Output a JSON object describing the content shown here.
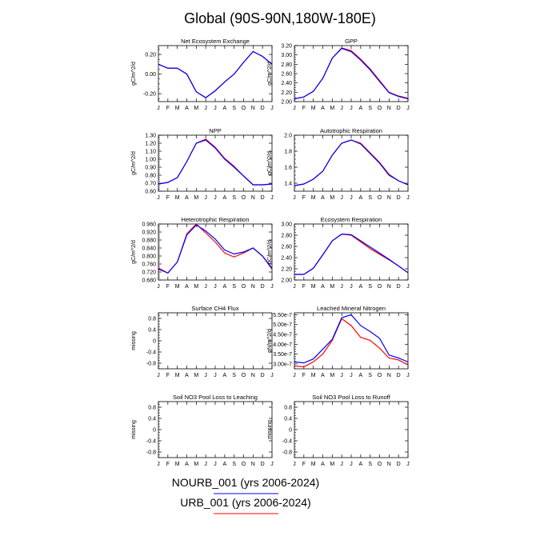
{
  "figure": {
    "title": "Global (90S-90N,180W-180E)"
  },
  "colors": {
    "nourb": "#0000ff",
    "urb": "#ff0000"
  },
  "legend": {
    "entries": [
      {
        "label": "NOURB_001 (yrs 2006-2024)",
        "color": "#0000ff"
      },
      {
        "label": "URB_001 (yrs 2006-2024)",
        "color": "#ff0000"
      }
    ]
  },
  "chart_data": [
    {
      "type": "line",
      "title": "Net Ecosystem Exchange",
      "ylabel": "gC/m^2/d",
      "categories": [
        "J",
        "F",
        "M",
        "A",
        "M",
        "J",
        "J",
        "A",
        "S",
        "O",
        "N",
        "D",
        "J"
      ],
      "ylim": [
        -0.28,
        0.29
      ],
      "yticks": [
        -0.2,
        0.0,
        0.2
      ],
      "yticklabels": [
        "-0.20",
        "0.00",
        "0.20"
      ],
      "series": [
        {
          "name": "NOURB_001 (yrs 2006-2024)",
          "color": "#0000ff",
          "values": [
            0.1,
            0.06,
            0.06,
            0.0,
            -0.18,
            -0.24,
            -0.17,
            -0.08,
            0.0,
            0.12,
            0.23,
            0.18,
            0.1
          ]
        },
        {
          "name": "URB_001 (yrs 2006-2024)",
          "color": "#ff0000",
          "values": [
            0.1,
            0.06,
            0.06,
            0.0,
            -0.18,
            -0.24,
            -0.17,
            -0.08,
            0.0,
            0.12,
            0.23,
            0.18,
            0.1
          ]
        }
      ]
    },
    {
      "type": "line",
      "title": "GPP",
      "ylabel": "gC/m^2/d",
      "categories": [
        "J",
        "F",
        "M",
        "A",
        "M",
        "J",
        "J",
        "A",
        "S",
        "O",
        "N",
        "D",
        "J"
      ],
      "ylim": [
        2.0,
        3.2
      ],
      "yticks": [
        2.0,
        2.2,
        2.4,
        2.6,
        2.8,
        3.0,
        3.2
      ],
      "yticklabels": [
        "2.00",
        "2.20",
        "2.40",
        "2.60",
        "2.80",
        "3.00",
        "3.20"
      ],
      "series": [
        {
          "name": "NOURB_001 (yrs 2006-2024)",
          "color": "#0000ff",
          "values": [
            2.06,
            2.1,
            2.22,
            2.5,
            2.93,
            3.14,
            3.07,
            2.89,
            2.68,
            2.43,
            2.19,
            2.11,
            2.06
          ]
        },
        {
          "name": "URB_001 (yrs 2006-2024)",
          "color": "#ff0000",
          "values": [
            2.06,
            2.1,
            2.22,
            2.5,
            2.93,
            3.15,
            3.09,
            2.91,
            2.7,
            2.45,
            2.2,
            2.12,
            2.07
          ]
        }
      ]
    },
    {
      "type": "line",
      "title": "NPP",
      "ylabel": "gC/m^2/d",
      "categories": [
        "J",
        "F",
        "M",
        "A",
        "M",
        "J",
        "J",
        "A",
        "S",
        "O",
        "N",
        "D",
        "J"
      ],
      "ylim": [
        0.6,
        1.3
      ],
      "yticks": [
        0.6,
        0.7,
        0.8,
        0.9,
        1.0,
        1.1,
        1.2,
        1.3
      ],
      "yticklabels": [
        "0.60",
        "0.70",
        "0.80",
        "0.90",
        "1.00",
        "1.10",
        "1.20",
        "1.30"
      ],
      "series": [
        {
          "name": "NOURB_001 (yrs 2006-2024)",
          "color": "#0000ff",
          "values": [
            0.69,
            0.71,
            0.77,
            0.97,
            1.2,
            1.24,
            1.14,
            1.0,
            0.9,
            0.79,
            0.68,
            0.68,
            0.69
          ]
        },
        {
          "name": "URB_001 (yrs 2006-2024)",
          "color": "#ff0000",
          "values": [
            0.69,
            0.71,
            0.77,
            0.97,
            1.2,
            1.25,
            1.15,
            1.01,
            0.91,
            0.79,
            0.68,
            0.68,
            0.69
          ]
        }
      ]
    },
    {
      "type": "line",
      "title": "Autotrophic Respiration",
      "ylabel": "gC/m^2/d",
      "categories": [
        "J",
        "F",
        "M",
        "A",
        "M",
        "J",
        "J",
        "A",
        "S",
        "O",
        "N",
        "D",
        "J"
      ],
      "ylim": [
        1.3,
        2.0
      ],
      "yticks": [
        1.4,
        1.6,
        1.8,
        2.0
      ],
      "yticklabels": [
        "1.4",
        "1.6",
        "1.8",
        "2.0"
      ],
      "series": [
        {
          "name": "NOURB_001 (yrs 2006-2024)",
          "color": "#0000ff",
          "values": [
            1.37,
            1.39,
            1.45,
            1.55,
            1.75,
            1.9,
            1.94,
            1.89,
            1.77,
            1.65,
            1.5,
            1.43,
            1.38
          ]
        },
        {
          "name": "URB_001 (yrs 2006-2024)",
          "color": "#ff0000",
          "values": [
            1.37,
            1.39,
            1.45,
            1.55,
            1.75,
            1.9,
            1.94,
            1.9,
            1.78,
            1.66,
            1.51,
            1.43,
            1.38
          ]
        }
      ]
    },
    {
      "type": "line",
      "title": "Heterotrophic Respiration",
      "ylabel": "gC/m^2/d",
      "categories": [
        "J",
        "F",
        "M",
        "A",
        "M",
        "J",
        "J",
        "A",
        "S",
        "O",
        "N",
        "D",
        "J"
      ],
      "ylim": [
        0.68,
        0.96
      ],
      "yticks": [
        0.68,
        0.72,
        0.76,
        0.8,
        0.84,
        0.88,
        0.92,
        0.96
      ],
      "yticklabels": [
        "0.680",
        "0.720",
        "0.760",
        "0.800",
        "0.840",
        "0.880",
        "0.920",
        "0.960"
      ],
      "series": [
        {
          "name": "NOURB_001 (yrs 2006-2024)",
          "color": "#0000ff",
          "values": [
            0.735,
            0.715,
            0.77,
            0.905,
            0.955,
            0.925,
            0.885,
            0.83,
            0.81,
            0.82,
            0.84,
            0.8,
            0.735
          ]
        },
        {
          "name": "URB_001 (yrs 2006-2024)",
          "color": "#ff0000",
          "values": [
            0.74,
            0.715,
            0.77,
            0.91,
            0.96,
            0.915,
            0.87,
            0.815,
            0.795,
            0.815,
            0.84,
            0.8,
            0.74
          ]
        }
      ]
    },
    {
      "type": "line",
      "title": "Ecosystem Respiration",
      "ylabel": "gC/m^2/d",
      "categories": [
        "J",
        "F",
        "M",
        "A",
        "M",
        "J",
        "J",
        "A",
        "S",
        "O",
        "N",
        "D",
        "J"
      ],
      "ylim": [
        2.0,
        3.0
      ],
      "yticks": [
        2.0,
        2.2,
        2.4,
        2.6,
        2.8,
        3.0
      ],
      "yticklabels": [
        "2.00",
        "2.20",
        "2.40",
        "2.60",
        "2.80",
        "3.00"
      ],
      "series": [
        {
          "name": "NOURB_001 (yrs 2006-2024)",
          "color": "#0000ff",
          "values": [
            2.1,
            2.1,
            2.21,
            2.45,
            2.7,
            2.82,
            2.81,
            2.7,
            2.59,
            2.48,
            2.37,
            2.25,
            2.13
          ]
        },
        {
          "name": "URB_001 (yrs 2006-2024)",
          "color": "#ff0000",
          "values": [
            2.1,
            2.1,
            2.21,
            2.45,
            2.7,
            2.82,
            2.8,
            2.68,
            2.56,
            2.46,
            2.36,
            2.25,
            2.13
          ]
        }
      ]
    },
    {
      "type": "line",
      "title": "Surface CH4 Flux",
      "ylabel": "missing",
      "categories": [
        "J",
        "F",
        "M",
        "A",
        "M",
        "J",
        "J",
        "A",
        "S",
        "O",
        "N",
        "D",
        "J"
      ],
      "ylim": [
        -1.0,
        1.0
      ],
      "yticks": [
        -0.8,
        -0.4,
        0.0,
        0.4,
        0.8
      ],
      "yticklabels": [
        "-0.8",
        "-0.4",
        "0",
        "0.4",
        "0.8"
      ],
      "series": []
    },
    {
      "type": "line",
      "title": "Leached Mineral Nitrogen",
      "ylabel": "gN/m^2/d",
      "categories": [
        "J",
        "F",
        "M",
        "A",
        "M",
        "J",
        "J",
        "A",
        "S",
        "O",
        "N",
        "D",
        "J"
      ],
      "ylim": [
        2.75e-07,
        5.6e-07
      ],
      "yticks": [
        3e-07,
        3.5e-07,
        4e-07,
        4.5e-07,
        5e-07,
        5.5e-07
      ],
      "yticklabels": [
        "3.00e-7",
        "3.50e-7",
        "4.00e-7",
        "4.50e-7",
        "5.00e-7",
        "5.50e-7"
      ],
      "series": [
        {
          "name": "NOURB_001 (yrs 2006-2024)",
          "color": "#0000ff",
          "values": [
            3.1e-07,
            3.05e-07,
            3.25e-07,
            3.75e-07,
            4.25e-07,
            5.35e-07,
            5.5e-07,
            4.95e-07,
            4.65e-07,
            4.3e-07,
            3.45e-07,
            3.3e-07,
            3.1e-07
          ]
        },
        {
          "name": "URB_001 (yrs 2006-2024)",
          "color": "#ff0000",
          "values": [
            2.9e-07,
            2.85e-07,
            3.1e-07,
            3.5e-07,
            4.2e-07,
            5.3e-07,
            4.95e-07,
            4.35e-07,
            4.2e-07,
            3.8e-07,
            3.3e-07,
            3.2e-07,
            2.95e-07
          ]
        }
      ]
    },
    {
      "type": "line",
      "title": "Soil NO3 Pool Loss to Leaching",
      "ylabel": "missing",
      "categories": [
        "J",
        "F",
        "M",
        "A",
        "M",
        "J",
        "J",
        "A",
        "S",
        "O",
        "N",
        "D",
        "J"
      ],
      "ylim": [
        -1.0,
        1.0
      ],
      "yticks": [
        -0.8,
        -0.4,
        0.0,
        0.4,
        0.8
      ],
      "yticklabels": [
        "-0.8",
        "-0.4",
        "0",
        "0.4",
        "0.8"
      ],
      "series": []
    },
    {
      "type": "line",
      "title": "Soil NO3 Pool Loss to Runoff",
      "ylabel": "missing",
      "categories": [
        "J",
        "F",
        "M",
        "A",
        "M",
        "J",
        "J",
        "A",
        "S",
        "O",
        "N",
        "D",
        "J"
      ],
      "ylim": [
        -1.0,
        1.0
      ],
      "yticks": [
        -0.8,
        -0.4,
        0.0,
        0.4,
        0.8
      ],
      "yticklabels": [
        "-0.8",
        "-0.4",
        "0",
        "0.4",
        "0.8"
      ],
      "series": []
    }
  ]
}
